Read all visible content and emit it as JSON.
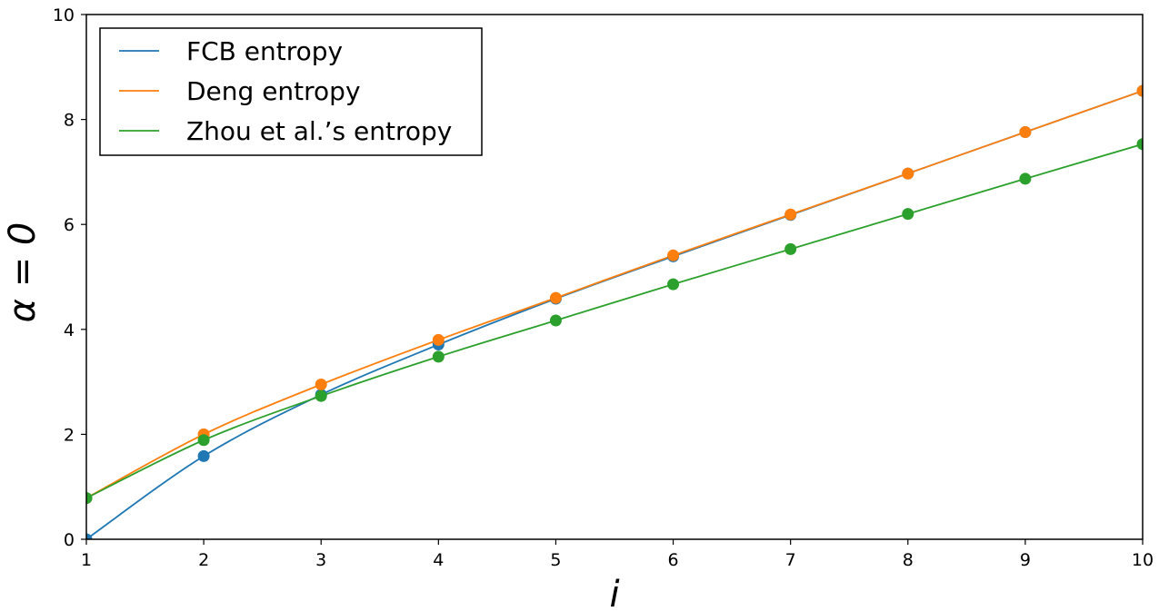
{
  "chart_data": {
    "type": "line",
    "xlabel": "i",
    "ylabel": "α = 0",
    "xlim": [
      1,
      10
    ],
    "ylim": [
      0,
      10
    ],
    "xticks": [
      1,
      2,
      3,
      4,
      5,
      6,
      7,
      8,
      9,
      10
    ],
    "yticks": [
      0,
      2,
      4,
      6,
      8,
      10
    ],
    "grid": false,
    "legend_position": "top-left",
    "x": [
      1,
      2,
      3,
      4,
      5,
      6,
      7,
      8,
      9,
      10
    ],
    "series": [
      {
        "name": "FCB  entropy",
        "color": "#1f77b4",
        "values": [
          0,
          1.585,
          2.755,
          3.71,
          4.585,
          5.392,
          6.18,
          6.97,
          7.76,
          8.545
        ]
      },
      {
        "name": "Deng  entropy",
        "color": "#ff7f0e",
        "values": [
          0.785,
          2.0,
          2.95,
          3.8,
          4.6,
          5.41,
          6.19,
          6.97,
          7.76,
          8.545
        ]
      },
      {
        "name": "Zhou et al.’s entropy",
        "color": "#2ca02c",
        "values": [
          0.785,
          1.89,
          2.73,
          3.48,
          4.17,
          4.86,
          5.53,
          6.2,
          6.87,
          7.53
        ]
      }
    ]
  }
}
